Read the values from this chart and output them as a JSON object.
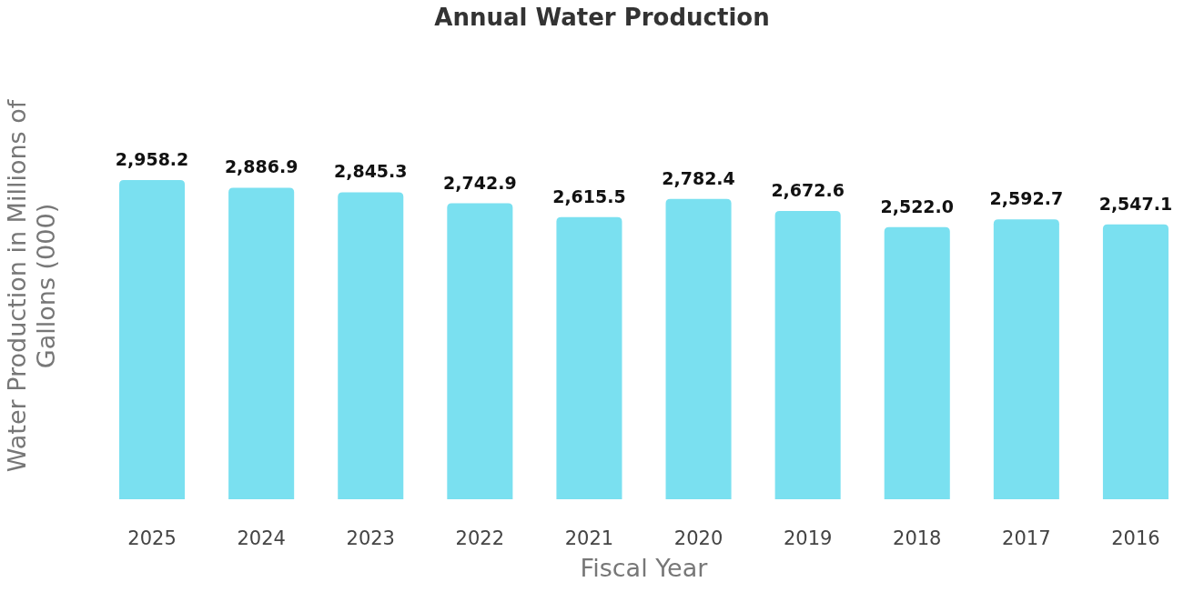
{
  "chart_data": {
    "type": "bar",
    "title": "Annual Water Production",
    "xlabel": "Fiscal Year",
    "ylabel": "Water Production in Millions of Gallons (000)",
    "categories": [
      "2025",
      "2024",
      "2023",
      "2022",
      "2021",
      "2020",
      "2019",
      "2018",
      "2017",
      "2016"
    ],
    "values": [
      2958.2,
      2886.9,
      2845.3,
      2742.9,
      2615.5,
      2782.4,
      2672.6,
      2522.0,
      2592.7,
      2547.1
    ],
    "value_labels": [
      "2,958.2",
      "2,886.9",
      "2,845.3",
      "2,742.9",
      "2,615.5",
      "2,782.4",
      "2,672.6",
      "2,522.0",
      "2,592.7",
      "2,547.1"
    ],
    "color": "#7ae0f0"
  }
}
